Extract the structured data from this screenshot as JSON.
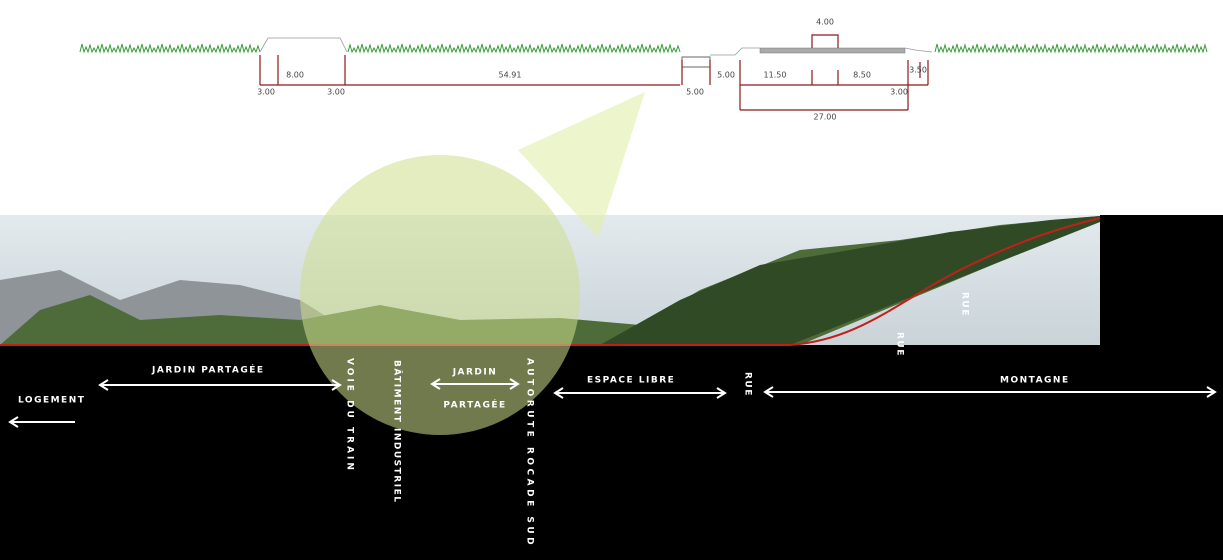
{
  "dimensions": [
    "4.00",
    "8.00",
    "54.91",
    "5.00",
    "11.50",
    "8.50",
    "3.50",
    "3.00",
    "3.00",
    "5.00",
    "3.00",
    "27.00"
  ],
  "labels": [
    "LOGEMENT",
    "JARDIN PARTAGÉE",
    "VOIE DU TRAIN",
    "BÂTIMENT INDUSTRIEL",
    "JARDIN",
    "PARTAGÉE",
    "AUTORUTE ROCADE SUD",
    "ESPACE LIBRE",
    "RUE",
    "MONTAGNE",
    "RUE",
    "RUE"
  ]
}
